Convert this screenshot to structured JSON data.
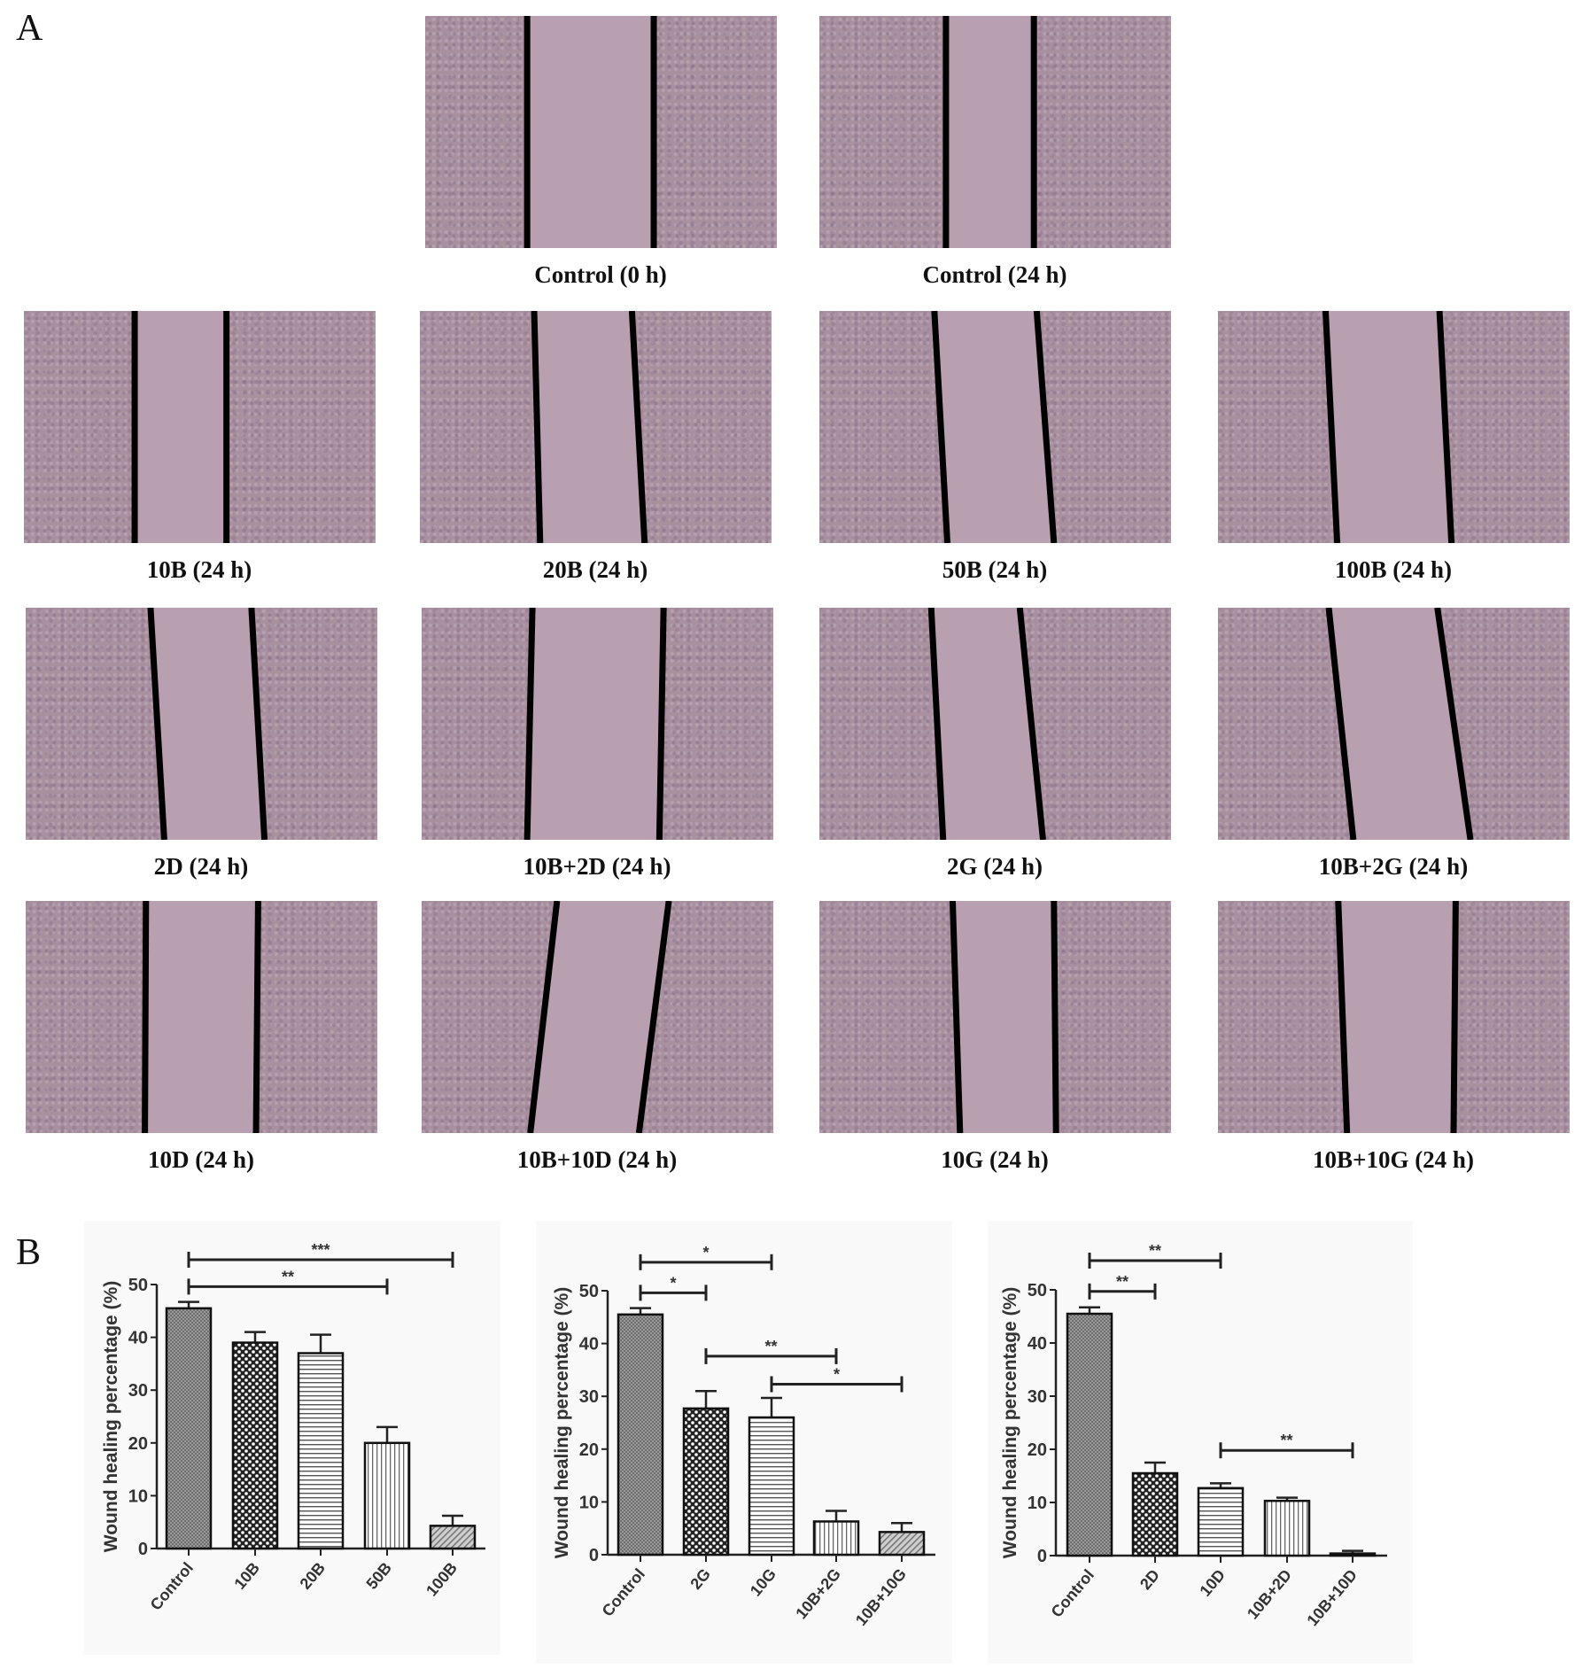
{
  "panel_a": {
    "letter": "A",
    "photos": [
      {
        "label": "Control (0 h)"
      },
      {
        "label": "Control (24 h)"
      },
      {
        "label": "10B (24 h)"
      },
      {
        "label": "20B (24 h)"
      },
      {
        "label": "50B (24 h)"
      },
      {
        "label": "100B (24 h)"
      },
      {
        "label": "2D (24 h)"
      },
      {
        "label": "10B+2D (24 h)"
      },
      {
        "label": "2G (24 h)"
      },
      {
        "label": "10B+2G (24 h)"
      },
      {
        "label": "10D (24 h)"
      },
      {
        "label": "10B+10D (24 h)"
      },
      {
        "label": "10G (24 h)"
      },
      {
        "label": "10B+10G (24 h)"
      }
    ]
  },
  "panel_b": {
    "letter": "B"
  },
  "chart_data": [
    {
      "type": "bar",
      "ylabel": "Wound healing percentage (%)",
      "ylim": [
        0,
        50
      ],
      "yticks": [
        "0",
        "10",
        "20",
        "30",
        "40",
        "50"
      ],
      "categories": [
        "Control",
        "10B",
        "20B",
        "50B",
        "100B"
      ],
      "values": [
        45.5,
        39,
        37,
        20,
        4.3
      ],
      "error_upper": [
        46.7,
        41,
        40.5,
        23,
        6.2
      ],
      "significance": [
        {
          "from": "Control",
          "to": "100B",
          "label": "***"
        },
        {
          "from": "Control",
          "to": "50B",
          "label": "**"
        }
      ]
    },
    {
      "type": "bar",
      "ylabel": "Wound healing percentage (%)",
      "ylim": [
        0,
        50
      ],
      "yticks": [
        "0",
        "10",
        "20",
        "30",
        "40",
        "50"
      ],
      "categories": [
        "Control",
        "2G",
        "10G",
        "10B+2G",
        "10B+10G"
      ],
      "values": [
        45.5,
        27.7,
        26,
        6.3,
        4.3
      ],
      "error_upper": [
        46.7,
        31,
        29.7,
        8.3,
        6
      ],
      "significance": [
        {
          "from": "Control",
          "to": "10G",
          "label": "*"
        },
        {
          "from": "Control",
          "to": "2G",
          "label": "*"
        },
        {
          "from": "2G",
          "to": "10B+2G",
          "label": "**"
        },
        {
          "from": "10G",
          "to": "10B+10G",
          "label": "*"
        }
      ]
    },
    {
      "type": "bar",
      "ylabel": "Wound healing percentage (%)",
      "ylim": [
        0,
        50
      ],
      "yticks": [
        "0",
        "10",
        "20",
        "30",
        "40",
        "50"
      ],
      "categories": [
        "Control",
        "2D",
        "10D",
        "10B+2D",
        "10B+10D"
      ],
      "values": [
        45.5,
        15.5,
        12.7,
        10.3,
        0.4
      ],
      "error_upper": [
        46.7,
        17.5,
        13.6,
        10.9,
        0.9
      ],
      "significance": [
        {
          "from": "Control",
          "to": "10D",
          "label": "**"
        },
        {
          "from": "Control",
          "to": "2D",
          "label": "**"
        },
        {
          "from": "10D",
          "to": "10B+10D",
          "label": "**"
        }
      ]
    }
  ]
}
